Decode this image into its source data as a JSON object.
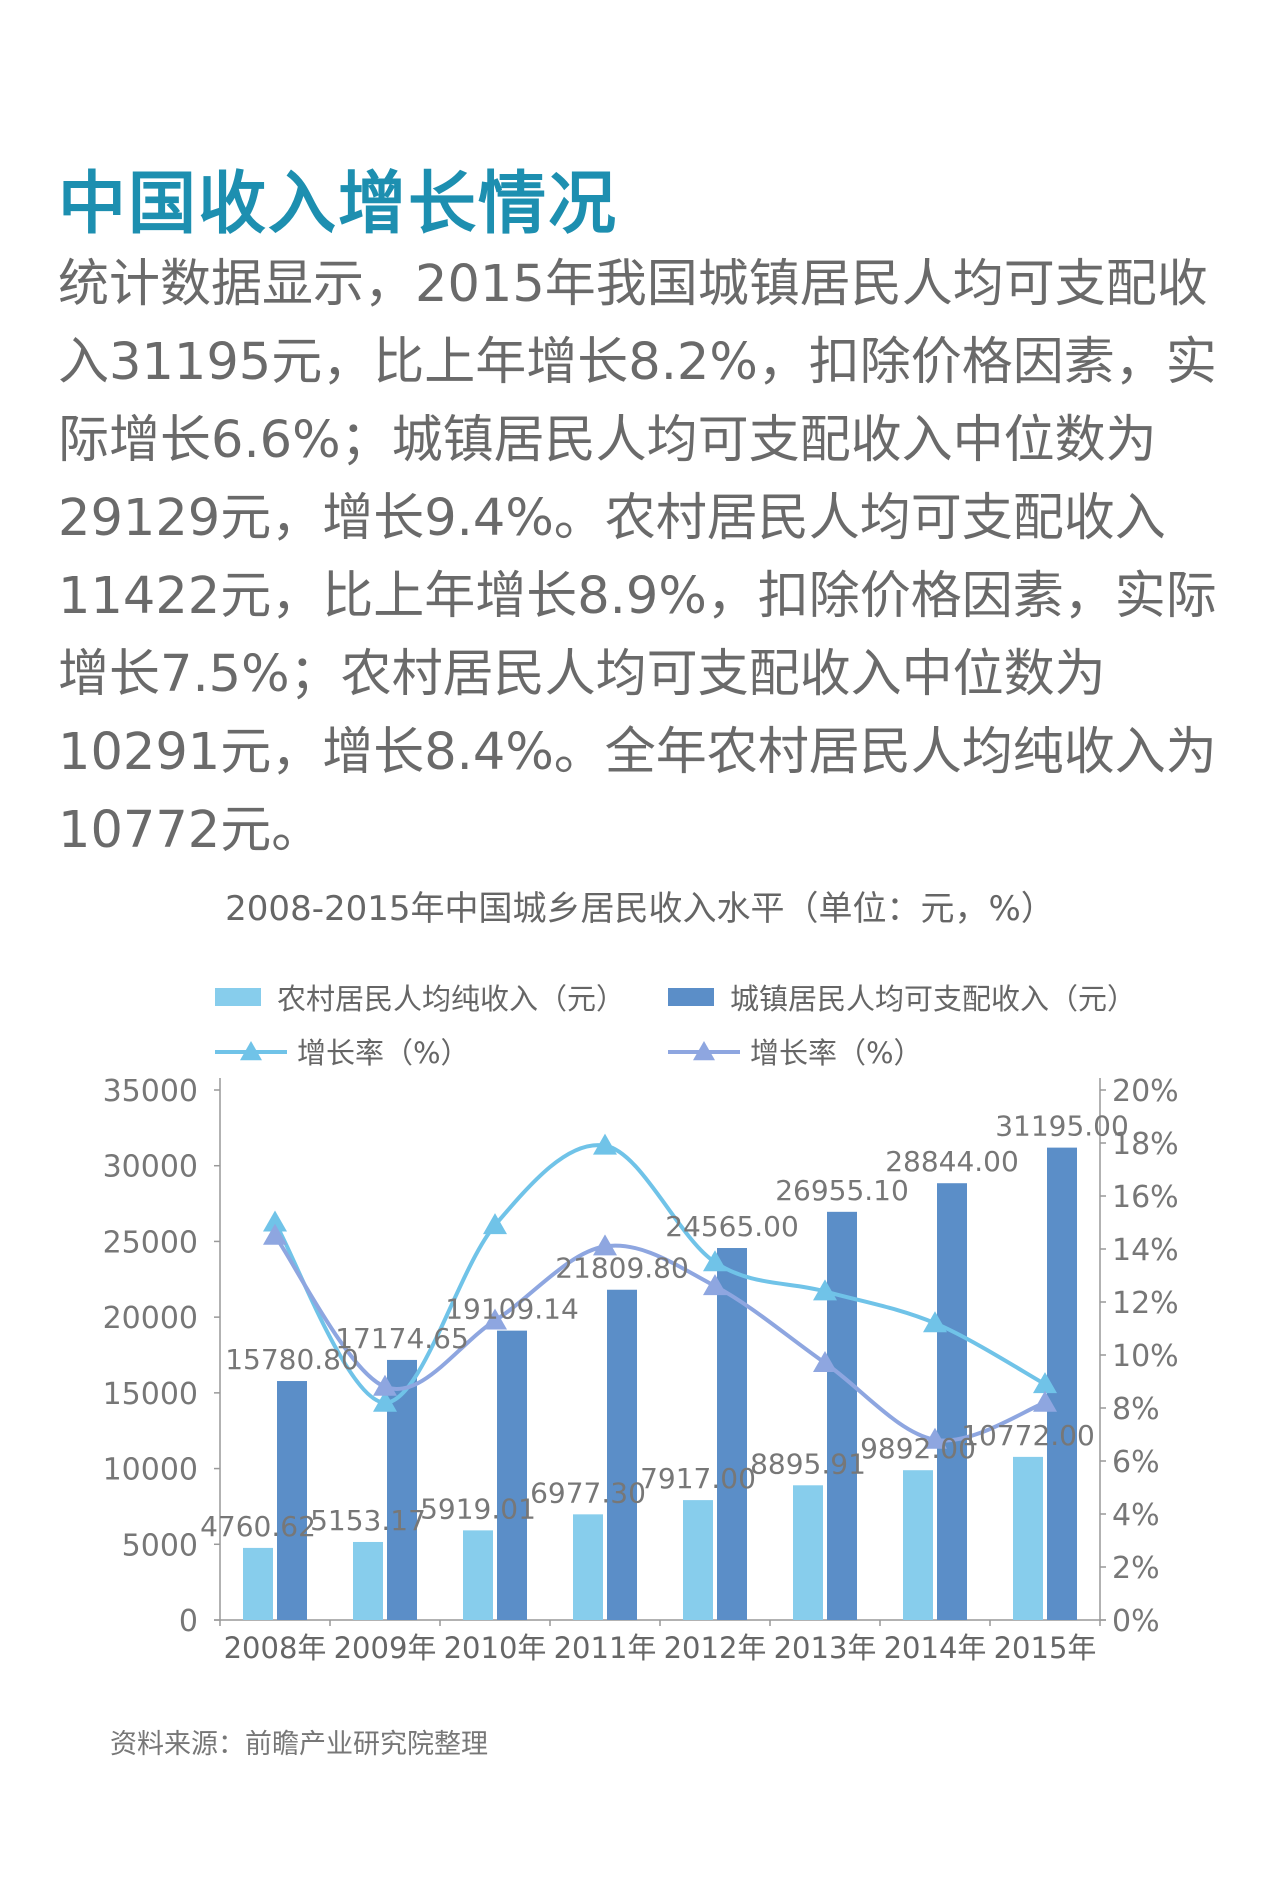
{
  "heading": "中国收入增长情况",
  "paragraph": "统计数据显示，2015年我国城镇居民人均可支配收入31195元，比上年增长8.2%，扣除价格因素，实际增长6.6%；城镇居民人均可支配收入中位数为29129元，增长9.4%。农村居民人均可支配收入11422元，比上年增长8.9%，扣除价格因素，实际增长7.5%；农村居民人均可支配收入中位数为10291元，增长8.4%。全年农村居民人均纯收入为10772元。",
  "source": "资料来源：前瞻产业研究院整理",
  "chart_data": {
    "type": "bar",
    "title": "2008-2015年中国城乡居民收入水平（单位：元，%）",
    "categories": [
      "2008年",
      "2009年",
      "2010年",
      "2011年",
      "2012年",
      "2013年",
      "2014年",
      "2015年"
    ],
    "ylim": [
      0,
      35000
    ],
    "yticks": [
      "35000",
      "30000",
      "25000",
      "20000",
      "15000",
      "10000",
      "5000",
      "0"
    ],
    "y2lim": [
      0,
      20
    ],
    "y2ticks": [
      "20%",
      "18%",
      "16%",
      "14%",
      "12%",
      "10%",
      "8%",
      "6%",
      "4%",
      "2%",
      "0%"
    ],
    "legend_position": "top",
    "series": [
      {
        "name": "农村居民人均纯收入（元）",
        "type": "bar",
        "color": "#87cdec",
        "values": [
          4760.62,
          5153.17,
          5919.01,
          6977.3,
          7917.0,
          8895.91,
          9892.0,
          10772.0
        ],
        "labels": [
          "4760.62",
          "5153.17",
          "5919.01",
          "6977.30",
          "7917.00",
          "8895.91",
          "9892.00",
          "10772.00"
        ]
      },
      {
        "name": "城镇居民人均可支配收入（元）",
        "type": "bar",
        "color": "#5b8ec8",
        "values": [
          15780.8,
          17174.65,
          19109.14,
          21809.8,
          24565.0,
          26955.1,
          28844.0,
          31195.0
        ],
        "labels": [
          "15780.80",
          "17174.65",
          "19109.14",
          "21809.80",
          "24565.00",
          "26955.10",
          "28844.00",
          "31195.00"
        ]
      },
      {
        "name": "增长率（%）",
        "type": "line",
        "axis": "right",
        "color": "#70c3e8",
        "values": [
          15.0,
          8.2,
          14.9,
          17.9,
          13.5,
          12.4,
          11.2,
          8.9
        ]
      },
      {
        "name": "增长率（%）",
        "type": "line",
        "axis": "right",
        "color": "#8ea6e0",
        "values": [
          14.5,
          8.8,
          11.3,
          14.1,
          12.6,
          9.7,
          6.8,
          8.2
        ]
      }
    ]
  }
}
